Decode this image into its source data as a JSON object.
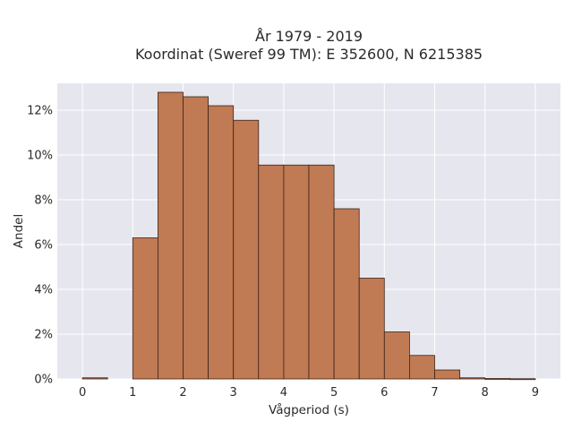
{
  "chart_data": {
    "type": "bar",
    "title_line1": "År 1979 - 2019",
    "title_line2": "Koordinat (Sweref 99 TM): E 352600, N 6215385",
    "xlabel": "Vågperiod (s)",
    "ylabel": "Andel",
    "xlim": [
      -0.5,
      9.5
    ],
    "ylim": [
      0,
      13.2
    ],
    "x_ticks": [
      0,
      1,
      2,
      3,
      4,
      5,
      6,
      7,
      8,
      9
    ],
    "x_tick_labels": [
      "0",
      "1",
      "2",
      "3",
      "4",
      "5",
      "6",
      "7",
      "8",
      "9"
    ],
    "y_ticks": [
      0,
      2,
      4,
      6,
      8,
      10,
      12
    ],
    "y_tick_labels": [
      "0%",
      "2%",
      "4%",
      "6%",
      "8%",
      "10%",
      "12%"
    ],
    "bin_width": 0.5,
    "bins": [
      {
        "start": 0.0,
        "value": 0.05
      },
      {
        "start": 0.5,
        "value": 0.0
      },
      {
        "start": 1.0,
        "value": 6.3
      },
      {
        "start": 1.5,
        "value": 12.8
      },
      {
        "start": 2.0,
        "value": 12.6
      },
      {
        "start": 2.5,
        "value": 12.2
      },
      {
        "start": 3.0,
        "value": 11.55
      },
      {
        "start": 3.5,
        "value": 9.55
      },
      {
        "start": 4.0,
        "value": 9.55
      },
      {
        "start": 4.5,
        "value": 9.55
      },
      {
        "start": 5.0,
        "value": 7.6
      },
      {
        "start": 5.5,
        "value": 4.5
      },
      {
        "start": 6.0,
        "value": 2.1
      },
      {
        "start": 6.5,
        "value": 1.05
      },
      {
        "start": 7.0,
        "value": 0.4
      },
      {
        "start": 7.5,
        "value": 0.05
      },
      {
        "start": 8.0,
        "value": 0.02
      },
      {
        "start": 8.5,
        "value": 0.01
      }
    ],
    "grid": true,
    "colors": {
      "bar_fill": "#c07a54",
      "bar_stroke": "#3a2418",
      "plot_bg": "#e6e6ef",
      "grid": "#ffffff"
    }
  }
}
